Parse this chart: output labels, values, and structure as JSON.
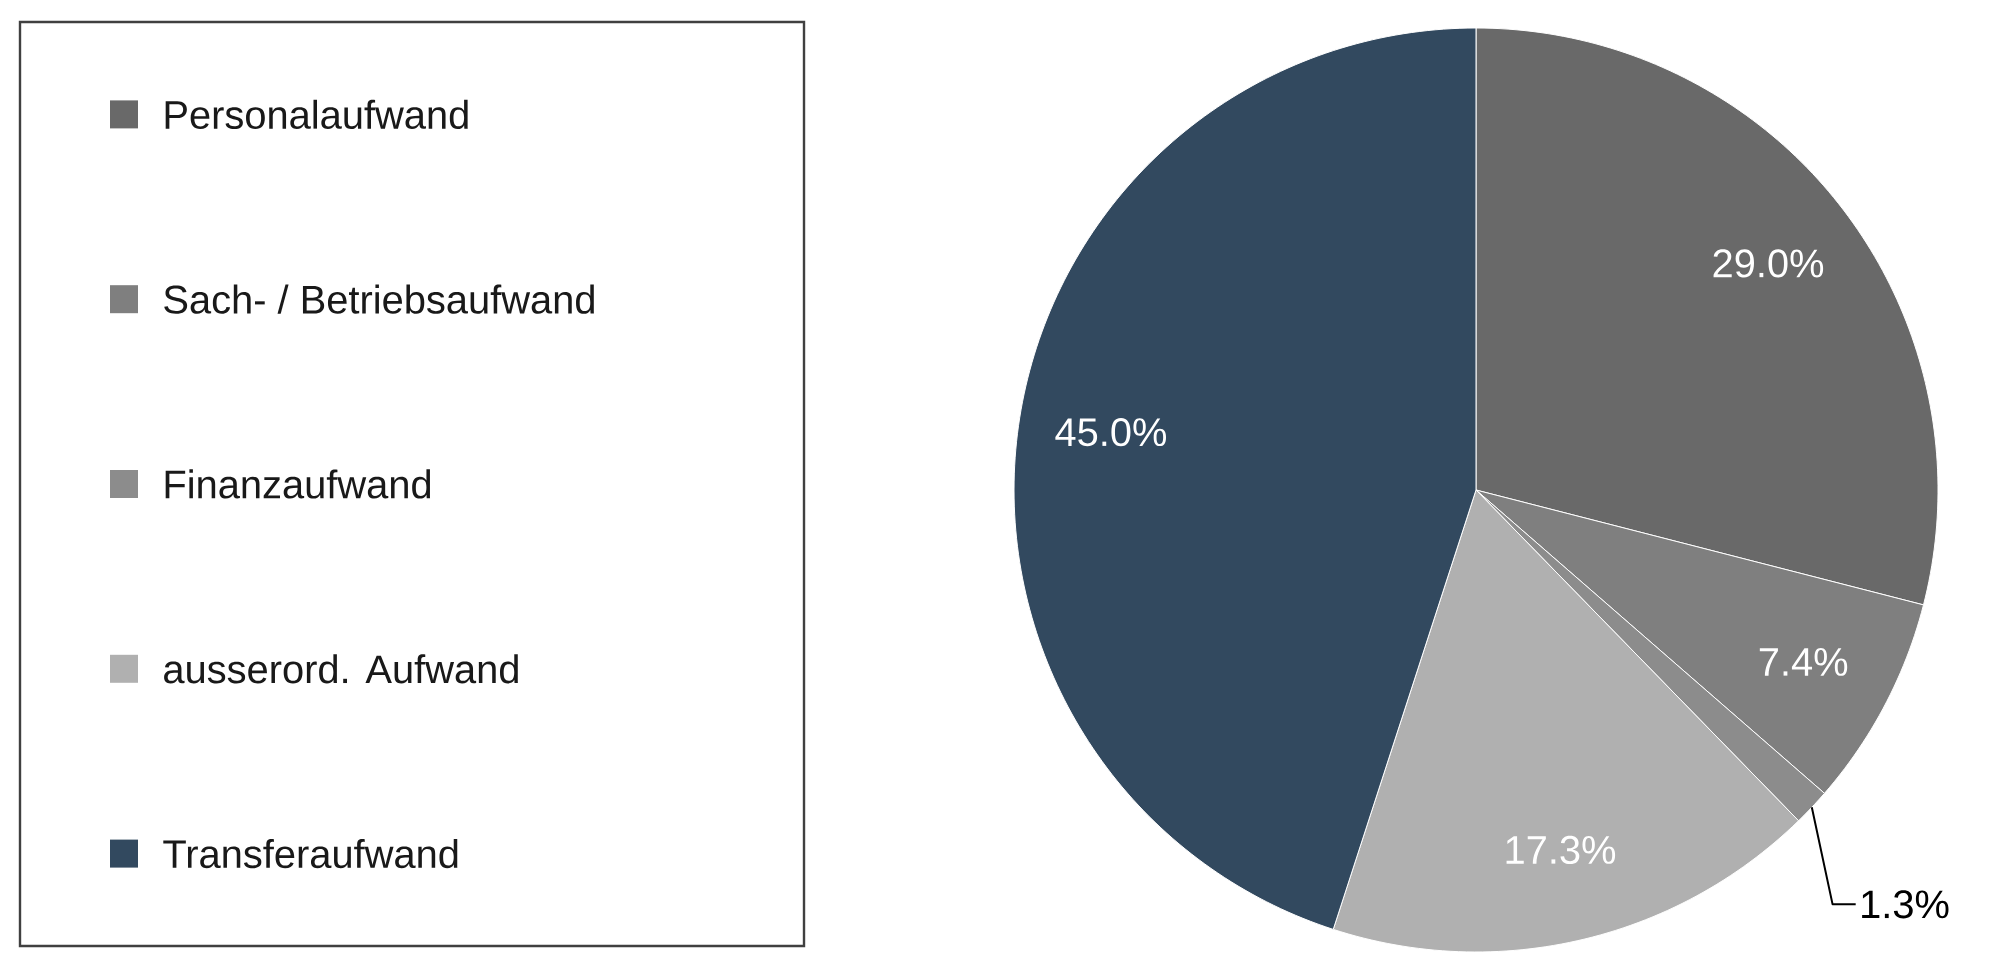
{
  "chart_data": {
    "type": "pie",
    "categories": [
      "Personalaufwand",
      "Sach- / Betriebsaufwand",
      "Finanzaufwand",
      "ausserord. Aufwand",
      "Transferaufwand"
    ],
    "values": [
      29.0,
      7.4,
      1.3,
      17.3,
      45.0
    ],
    "colors": [
      "#696969",
      "#7f7f7f",
      "#8c8c8c",
      "#b0b0b0",
      "#32495f"
    ],
    "value_labels": [
      "29.0%",
      "7.4%",
      "1.3%",
      "17.3%",
      "45.0%"
    ],
    "legend": "left"
  }
}
